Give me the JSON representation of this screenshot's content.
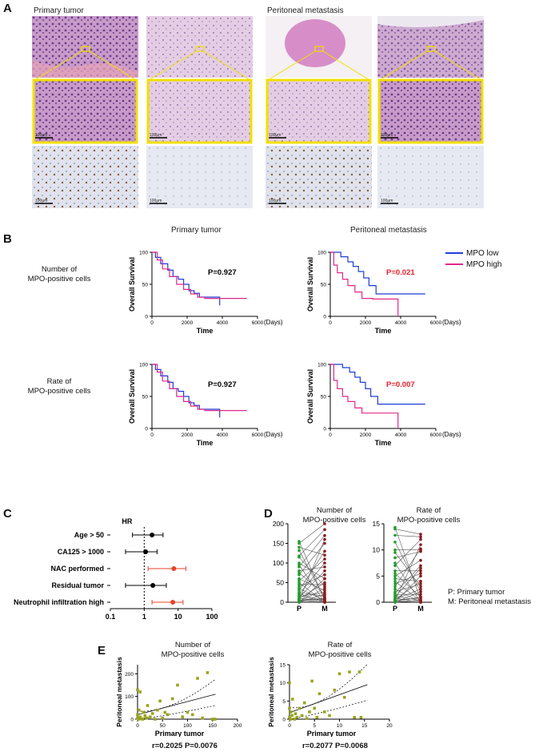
{
  "panelA": {
    "letter": "A",
    "header_primary": "Primary tumor",
    "header_metastasis": "Peritoneal metastasis",
    "scale_bar_label": "100μm"
  },
  "panelB": {
    "letter": "B",
    "col_primary": "Primary tumor",
    "col_metastasis": "Peritoneal metastasis",
    "row1_label_a": "Number of",
    "row1_label_b": "MPO-positive cells",
    "row2_label_a": "Rate of",
    "row2_label_b": "MPO-positive cells",
    "legend_low": "MPO low",
    "legend_high": "MPO high",
    "xlabel": "Time",
    "ylabel": "Overall Survival",
    "x_unit": "(Days)",
    "plots": [
      {
        "p": "P=0.927",
        "sig": false
      },
      {
        "p": "P=0.021",
        "sig": true
      },
      {
        "p": "P=0.927",
        "sig": false
      },
      {
        "p": "P=0.007",
        "sig": true
      }
    ]
  },
  "panelC": {
    "letter": "C",
    "hr_label": "HR",
    "rows": [
      "Age > 50",
      "CA125 > 1000",
      "NAC performed",
      "Residual tumor",
      "Neutrophil infiltration high"
    ]
  },
  "panelD": {
    "letter": "D",
    "left_title_a": "Number of",
    "left_title_b": "MPO-positive cells",
    "right_title_a": "Rate of",
    "right_title_b": "MPO-positive cells",
    "note_p": "P: Primary tumor",
    "note_m": "M: Peritoneal metastasis",
    "x_p": "P",
    "x_m": "M"
  },
  "panelE": {
    "letter": "E",
    "left_title_a": "Number of",
    "left_title_b": "MPO-positive cells",
    "right_title_a": "Rate of",
    "right_title_b": "MPO-positive cells",
    "xlabel": "Primary tumor",
    "ylabel": "Peritoneal metastasis",
    "left_stat": "r=0.2025 P=0.0076",
    "right_stat": "r=0.2077 P=0.0068"
  },
  "colors": {
    "mpo_low": "#1f3fd6",
    "mpo_high": "#e0288a",
    "hr_sig": "#e8442a",
    "hr_ns": "#000000",
    "primary_dot": "#1f9e2a",
    "meta_dot": "#8b1a1a",
    "scatter": "#9aa41c",
    "zoom_frame": "#f2e000"
  },
  "chart_data": [
    {
      "type": "line",
      "id": "km_primary_number",
      "xlabel": "Time",
      "ylabel": "Overall Survival",
      "xlim": [
        0,
        6000
      ],
      "ylim": [
        0,
        100
      ],
      "series": [
        {
          "name": "MPO low",
          "x": [
            0,
            200,
            500,
            900,
            1200,
            1500,
            1800,
            2100,
            2400,
            2700,
            3800,
            3850
          ],
          "y": [
            100,
            92,
            82,
            72,
            62,
            58,
            50,
            40,
            36,
            30,
            30,
            17
          ]
        },
        {
          "name": "MPO high",
          "x": [
            0,
            300,
            600,
            1000,
            1400,
            1800,
            2200,
            2600,
            3000,
            5400
          ],
          "y": [
            100,
            88,
            74,
            62,
            50,
            42,
            35,
            30,
            28,
            28
          ]
        }
      ],
      "annotation": "P=0.927"
    },
    {
      "type": "line",
      "id": "km_meta_number",
      "xlabel": "Time",
      "ylabel": "Overall Survival",
      "xlim": [
        0,
        6000
      ],
      "ylim": [
        0,
        100
      ],
      "series": [
        {
          "name": "MPO low",
          "x": [
            0,
            600,
            1000,
            1300,
            1600,
            1900,
            2200,
            2600,
            5400
          ],
          "y": [
            100,
            93,
            85,
            78,
            70,
            60,
            48,
            35,
            35
          ]
        },
        {
          "name": "MPO high",
          "x": [
            0,
            200,
            400,
            700,
            1000,
            1400,
            1800,
            2400,
            3800,
            3850
          ],
          "y": [
            100,
            80,
            68,
            58,
            48,
            38,
            28,
            27,
            27,
            0
          ]
        }
      ],
      "annotation": "P=0.021"
    },
    {
      "type": "line",
      "id": "km_primary_rate",
      "xlabel": "Time",
      "ylabel": "Overall Survival",
      "xlim": [
        0,
        6000
      ],
      "ylim": [
        0,
        100
      ],
      "series": [
        {
          "name": "MPO low",
          "x": [
            0,
            200,
            500,
            900,
            1200,
            1500,
            1800,
            2100,
            2400,
            2700,
            3800,
            3850
          ],
          "y": [
            100,
            92,
            82,
            72,
            62,
            58,
            50,
            40,
            36,
            30,
            30,
            17
          ]
        },
        {
          "name": "MPO high",
          "x": [
            0,
            300,
            600,
            1000,
            1400,
            1800,
            2200,
            2600,
            3000,
            5400
          ],
          "y": [
            100,
            88,
            74,
            62,
            50,
            42,
            35,
            30,
            28,
            28
          ]
        }
      ],
      "annotation": "P=0.927"
    },
    {
      "type": "line",
      "id": "km_meta_rate",
      "xlabel": "Time",
      "ylabel": "Overall Survival",
      "xlim": [
        0,
        6000
      ],
      "ylim": [
        0,
        100
      ],
      "series": [
        {
          "name": "MPO low",
          "x": [
            0,
            700,
            1100,
            1400,
            1700,
            2000,
            2300,
            2700,
            5400
          ],
          "y": [
            100,
            95,
            88,
            80,
            72,
            62,
            50,
            38,
            38
          ]
        },
        {
          "name": "MPO high",
          "x": [
            0,
            200,
            400,
            700,
            1000,
            1400,
            1800,
            3800,
            3850
          ],
          "y": [
            100,
            75,
            62,
            50,
            42,
            32,
            24,
            24,
            0
          ]
        }
      ],
      "annotation": "P=0.007"
    },
    {
      "type": "scatter",
      "id": "forest_hr",
      "xlim": [
        0.1,
        100
      ],
      "log_x": true,
      "rows": [
        "Age > 50",
        "CA125 > 1000",
        "NAC performed",
        "Residual tumor",
        "Neutrophil infiltration high"
      ],
      "hr": [
        1.7,
        1.1,
        7.5,
        1.8,
        7.0
      ],
      "low": [
        0.45,
        0.28,
        1.3,
        0.28,
        1.7
      ],
      "high": [
        3.6,
        2.4,
        17,
        4.5,
        14
      ],
      "significant": [
        false,
        false,
        true,
        false,
        true
      ]
    },
    {
      "type": "scatter",
      "id": "paired_number",
      "categories": [
        "P",
        "M"
      ],
      "ylim": [
        0,
        200
      ],
      "P": [
        155,
        150,
        140,
        132,
        118,
        115,
        100,
        95,
        90,
        80,
        75,
        70,
        60,
        55,
        50,
        45,
        40,
        35,
        30,
        25,
        22,
        20,
        18,
        15,
        12,
        10,
        8,
        6,
        5,
        4,
        3,
        2,
        1,
        0,
        0,
        0
      ],
      "M": [
        5,
        200,
        120,
        10,
        185,
        40,
        60,
        0,
        170,
        90,
        20,
        150,
        30,
        110,
        0,
        45,
        70,
        5,
        130,
        15,
        2,
        100,
        0,
        25,
        80,
        3,
        50,
        0,
        10,
        160,
        8,
        35,
        1,
        0,
        60,
        20
      ]
    },
    {
      "type": "scatter",
      "id": "paired_rate",
      "categories": [
        "P",
        "M"
      ],
      "ylim": [
        0,
        15
      ],
      "P": [
        14.3,
        14,
        12.8,
        11.5,
        10,
        9.5,
        8.5,
        7.5,
        7,
        6,
        5.5,
        5,
        4.5,
        4,
        3.5,
        3,
        2.5,
        2,
        1.8,
        1.5,
        1.2,
        1,
        0.8,
        0.6,
        0.5,
        0.4,
        0.3,
        0.2,
        0.1,
        0,
        0,
        0
      ],
      "M": [
        0.5,
        13,
        12.5,
        2,
        10,
        3,
        9.7,
        0,
        12,
        6,
        1,
        8,
        4,
        0.2,
        5.5,
        10.2,
        0,
        3.5,
        7,
        1.5,
        0.3,
        6.5,
        0,
        2.5,
        4,
        0.8,
        11,
        0,
        1,
        5,
        0.4,
        2
      ]
    },
    {
      "type": "scatter",
      "id": "corr_number",
      "xlabel": "Primary tumor",
      "ylabel": "Peritoneal metastasis",
      "xlim": [
        0,
        200
      ],
      "ylim": [
        0,
        240
      ],
      "x": [
        0,
        0,
        0,
        2,
        3,
        5,
        5,
        8,
        10,
        12,
        15,
        18,
        20,
        25,
        30,
        35,
        40,
        45,
        50,
        55,
        60,
        70,
        80,
        90,
        100,
        110,
        120,
        130,
        140,
        150,
        155
      ],
      "y": [
        130,
        20,
        5,
        0,
        40,
        10,
        120,
        2,
        0,
        30,
        15,
        5,
        60,
        10,
        25,
        0,
        40,
        80,
        5,
        30,
        20,
        90,
        150,
        10,
        30,
        20,
        180,
        5,
        205,
        0,
        0
      ]
    },
    {
      "type": "scatter",
      "id": "corr_rate",
      "xlabel": "Primary tumor",
      "ylabel": "Peritoneal metastasis",
      "xlim": [
        0,
        20
      ],
      "ylim": [
        0,
        15
      ],
      "x": [
        0,
        0,
        0,
        0.2,
        0.3,
        0.5,
        0.6,
        1,
        1.2,
        1.5,
        2,
        2.5,
        3,
        3.5,
        4,
        4.5,
        5,
        5.5,
        6,
        7,
        8,
        9,
        10,
        11,
        12,
        13,
        14,
        14.3
      ],
      "y": [
        10,
        3,
        0.5,
        0,
        2,
        1,
        5.5,
        0,
        1.5,
        0.5,
        3,
        1,
        4.5,
        0.2,
        2,
        10.5,
        3,
        0.5,
        7,
        2,
        1,
        8,
        12.5,
        6,
        13,
        0.5,
        13,
        0.5
      ]
    }
  ]
}
